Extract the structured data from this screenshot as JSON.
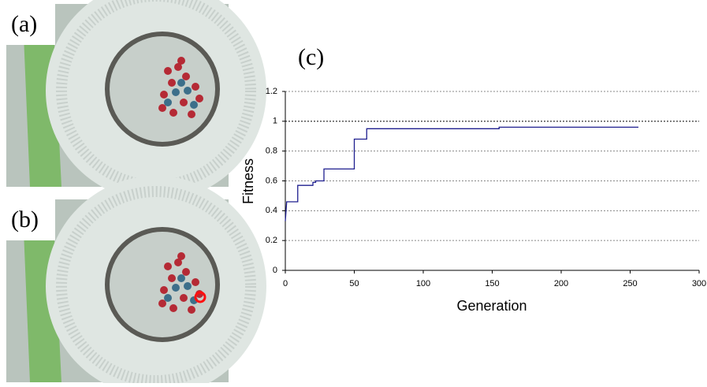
{
  "panel_labels": [
    "(a)",
    "(b)"
  ],
  "chart_data": {
    "type": "line",
    "title": "(c)",
    "x_label": "Generation",
    "y_label": "Fitness",
    "xlim": [
      0,
      300
    ],
    "xticks": [
      0,
      50,
      100,
      150,
      200,
      250,
      300
    ],
    "ylim": [
      0,
      1.2
    ],
    "yticks": [
      0,
      0.2,
      0.4,
      0.6,
      0.8,
      1,
      1.2
    ],
    "grid": true,
    "series": [
      {
        "color": "#1f1f8f",
        "x": [
          0,
          1,
          9,
          9,
          20,
          20,
          22,
          22,
          28,
          28,
          50,
          50,
          59,
          59,
          155,
          155,
          256
        ],
        "values": [
          0.33,
          0.46,
          0.46,
          0.57,
          0.57,
          0.59,
          0.59,
          0.6,
          0.6,
          0.68,
          0.68,
          0.88,
          0.88,
          0.95,
          0.95,
          0.96,
          0.96
        ]
      }
    ]
  }
}
